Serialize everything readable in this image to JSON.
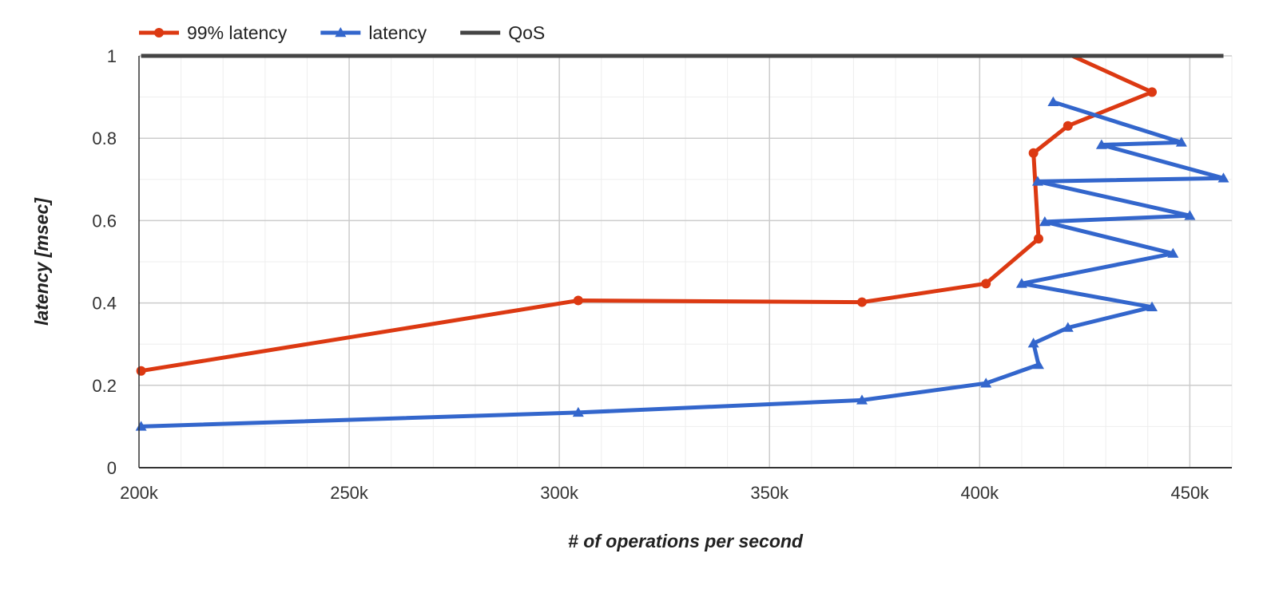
{
  "chart_data": {
    "type": "line",
    "title": "",
    "xlabel": "# of operations per second",
    "ylabel": "latency [msec]",
    "xlim": [
      200000,
      460000
    ],
    "ylim": [
      0,
      1
    ],
    "x_ticks": [
      {
        "value": 200000,
        "label": "200k"
      },
      {
        "value": 250000,
        "label": "250k"
      },
      {
        "value": 300000,
        "label": "300k"
      },
      {
        "value": 350000,
        "label": "350k"
      },
      {
        "value": 400000,
        "label": "400k"
      },
      {
        "value": 450000,
        "label": "450k"
      }
    ],
    "y_ticks": [
      {
        "value": 0,
        "label": "0"
      },
      {
        "value": 0.2,
        "label": "0.2"
      },
      {
        "value": 0.4,
        "label": "0.4"
      },
      {
        "value": 0.6,
        "label": "0.6"
      },
      {
        "value": 0.8,
        "label": "0.8"
      },
      {
        "value": 1,
        "label": "1"
      }
    ],
    "grid": true,
    "legend_position": "top-left",
    "series": [
      {
        "name": "99% latency",
        "color": "#dc3912",
        "marker": "circle",
        "points": [
          [
            200500,
            0.235
          ],
          [
            304500,
            0.406
          ],
          [
            372000,
            0.402
          ],
          [
            401500,
            0.447
          ],
          [
            414000,
            0.556
          ],
          [
            412800,
            0.764
          ],
          [
            421000,
            0.83
          ],
          [
            441000,
            0.912
          ],
          [
            422000,
            1.0
          ]
        ]
      },
      {
        "name": "latency",
        "color": "#3366cc",
        "marker": "triangle",
        "points": [
          [
            200500,
            0.1
          ],
          [
            304500,
            0.134
          ],
          [
            372000,
            0.164
          ],
          [
            401500,
            0.205
          ],
          [
            414000,
            0.25
          ],
          [
            412800,
            0.302
          ],
          [
            421000,
            0.34
          ],
          [
            441000,
            0.39
          ],
          [
            410000,
            0.447
          ],
          [
            446000,
            0.52
          ],
          [
            415500,
            0.597
          ],
          [
            450000,
            0.612
          ],
          [
            413800,
            0.695
          ],
          [
            458000,
            0.703
          ],
          [
            429000,
            0.784
          ],
          [
            448000,
            0.79
          ],
          [
            417500,
            0.888
          ]
        ]
      },
      {
        "name": "QoS",
        "color": "#444444",
        "marker": "none",
        "points": [
          [
            200500,
            1.0
          ],
          [
            458000,
            1.0
          ]
        ]
      }
    ]
  }
}
